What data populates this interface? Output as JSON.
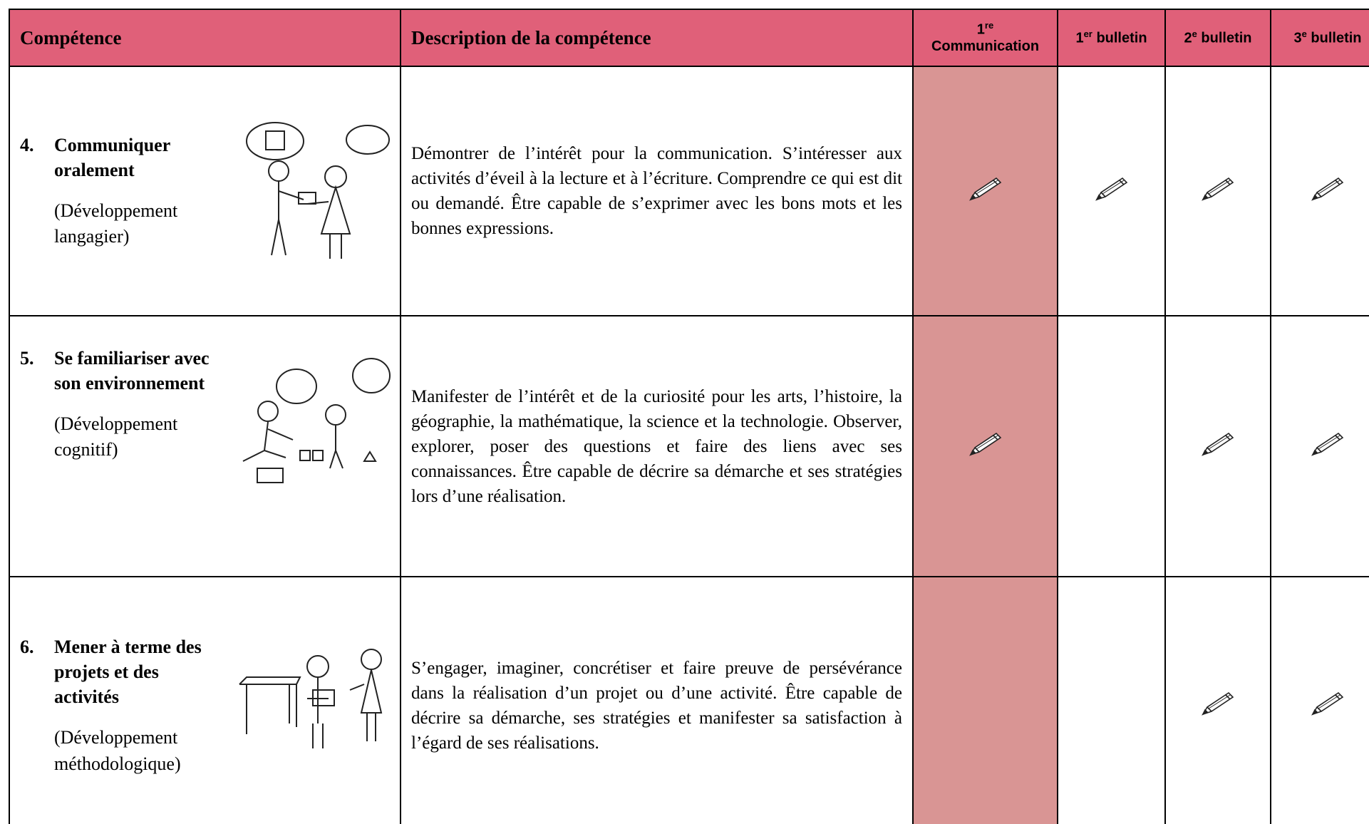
{
  "header": {
    "competence": "Compétence",
    "description": "Description de la compétence",
    "periods": [
      {
        "num": "1",
        "sup": "re",
        "label": "Communication"
      },
      {
        "num": "1",
        "sup": "er",
        "label": "bulletin"
      },
      {
        "num": "2",
        "sup": "e",
        "label": "bulletin"
      },
      {
        "num": "3",
        "sup": "e",
        "label": "bulletin"
      }
    ]
  },
  "rows": [
    {
      "number": "4.",
      "title": "Communiquer oralement",
      "domain": "(Développement langagier)",
      "description": "Démontrer de l’intérêt pour la communication. S’intéresser aux activités d’éveil à la lecture et à l’écriture. Comprendre ce qui est dit ou demandé.  Être capable de s’exprimer avec les bons mots et les bonnes expressions."
    },
    {
      "number": "5.",
      "title": "Se familiariser avec son environnement",
      "domain": "(Développement cognitif)",
      "description": "Manifester de l’intérêt et de la curiosité pour les arts, l’histoire, la géographie, la mathématique, la science et la technologie. Observer, explorer, poser des questions et faire des liens avec ses connaissances. Être capable de décrire sa démarche et ses stratégies lors d’une réalisation."
    },
    {
      "number": "6.",
      "title": "Mener à terme des projets et des activités",
      "domain": "(Développement méthodologique)",
      "description": "S’engager, imaginer, concrétiser et faire preuve de persévérance dans la réalisation d’un projet ou d’une activité. Être capable de décrire sa démarche, ses stratégies et manifester sa satisfaction à l’égard de ses réalisations."
    }
  ]
}
